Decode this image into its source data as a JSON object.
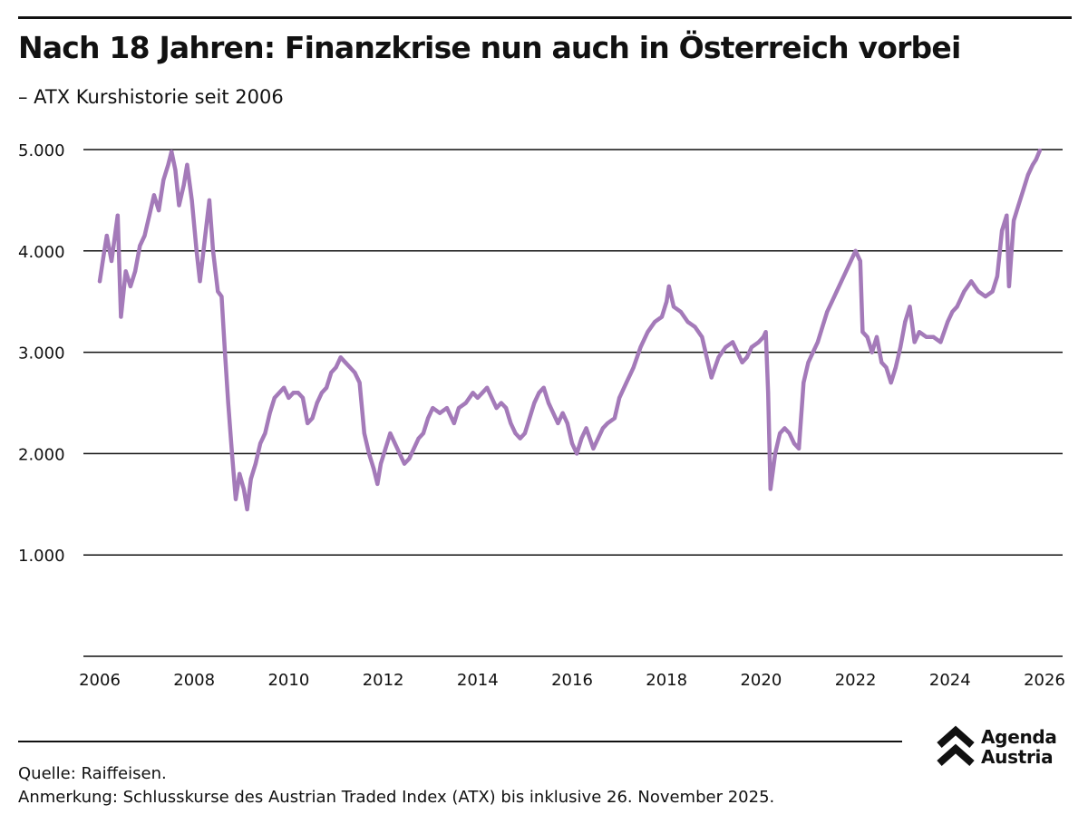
{
  "title": "Nach 18 Jahren: Finanzkrise nun auch in Österreich vorbei",
  "subtitle": "– ATX Kurshistorie seit 2006",
  "footer": {
    "source": "Quelle: Raiffeisen.",
    "note": "Anmerkung: Schlusskurse des Austrian Traded Index (ATX) bis inklusive 26. November 2025."
  },
  "logo": {
    "line1": "Agenda",
    "line2": "Austria",
    "icon": "double-chevron-up-icon"
  },
  "colors": {
    "series": "#a47ab9",
    "grid": "#111111",
    "text": "#111111",
    "background": "#ffffff"
  },
  "chart_data": {
    "type": "line",
    "title": "Nach 18 Jahren: Finanzkrise nun auch in Österreich vorbei",
    "subtitle": "– ATX Kurshistorie seit 2006",
    "xlabel": "",
    "ylabel": "",
    "xlim": [
      2006,
      2026
    ],
    "ylim": [
      0,
      5000
    ],
    "grid": true,
    "legend": "none",
    "x_ticks": [
      {
        "value": 2006,
        "label": "2006"
      },
      {
        "value": 2008,
        "label": "2008"
      },
      {
        "value": 2010,
        "label": "2010"
      },
      {
        "value": 2012,
        "label": "2012"
      },
      {
        "value": 2014,
        "label": "2014"
      },
      {
        "value": 2016,
        "label": "2016"
      },
      {
        "value": 2018,
        "label": "2018"
      },
      {
        "value": 2020,
        "label": "2020"
      },
      {
        "value": 2022,
        "label": "2022"
      },
      {
        "value": 2024,
        "label": "2024"
      },
      {
        "value": 2026,
        "label": "2026"
      }
    ],
    "y_ticks": [
      {
        "value": 1000,
        "label": "1.000"
      },
      {
        "value": 2000,
        "label": "2.000"
      },
      {
        "value": 3000,
        "label": "3.000"
      },
      {
        "value": 4000,
        "label": "4.000"
      },
      {
        "value": 5000,
        "label": "5.000"
      }
    ],
    "series": [
      {
        "name": "ATX",
        "color": "#a47ab9",
        "points": [
          [
            2006.0,
            3700
          ],
          [
            2006.08,
            3950
          ],
          [
            2006.15,
            4150
          ],
          [
            2006.25,
            3900
          ],
          [
            2006.38,
            4350
          ],
          [
            2006.45,
            3350
          ],
          [
            2006.55,
            3800
          ],
          [
            2006.65,
            3650
          ],
          [
            2006.75,
            3800
          ],
          [
            2006.85,
            4050
          ],
          [
            2006.95,
            4150
          ],
          [
            2007.05,
            4350
          ],
          [
            2007.15,
            4550
          ],
          [
            2007.25,
            4400
          ],
          [
            2007.35,
            4700
          ],
          [
            2007.45,
            4850
          ],
          [
            2007.52,
            4980
          ],
          [
            2007.6,
            4800
          ],
          [
            2007.68,
            4450
          ],
          [
            2007.78,
            4650
          ],
          [
            2007.85,
            4850
          ],
          [
            2007.95,
            4500
          ],
          [
            2008.05,
            4000
          ],
          [
            2008.12,
            3700
          ],
          [
            2008.22,
            4100
          ],
          [
            2008.32,
            4500
          ],
          [
            2008.4,
            4000
          ],
          [
            2008.5,
            3600
          ],
          [
            2008.58,
            3550
          ],
          [
            2008.65,
            3000
          ],
          [
            2008.72,
            2500
          ],
          [
            2008.8,
            2000
          ],
          [
            2008.88,
            1550
          ],
          [
            2008.96,
            1800
          ],
          [
            2009.05,
            1650
          ],
          [
            2009.12,
            1450
          ],
          [
            2009.2,
            1750
          ],
          [
            2009.3,
            1900
          ],
          [
            2009.4,
            2100
          ],
          [
            2009.5,
            2200
          ],
          [
            2009.6,
            2400
          ],
          [
            2009.7,
            2550
          ],
          [
            2009.8,
            2600
          ],
          [
            2009.9,
            2650
          ],
          [
            2010.0,
            2550
          ],
          [
            2010.1,
            2600
          ],
          [
            2010.2,
            2600
          ],
          [
            2010.3,
            2550
          ],
          [
            2010.4,
            2300
          ],
          [
            2010.5,
            2350
          ],
          [
            2010.6,
            2500
          ],
          [
            2010.7,
            2600
          ],
          [
            2010.8,
            2650
          ],
          [
            2010.9,
            2800
          ],
          [
            2011.0,
            2850
          ],
          [
            2011.1,
            2950
          ],
          [
            2011.2,
            2900
          ],
          [
            2011.3,
            2850
          ],
          [
            2011.4,
            2800
          ],
          [
            2011.5,
            2700
          ],
          [
            2011.6,
            2200
          ],
          [
            2011.7,
            2000
          ],
          [
            2011.8,
            1850
          ],
          [
            2011.88,
            1700
          ],
          [
            2011.95,
            1900
          ],
          [
            2012.05,
            2050
          ],
          [
            2012.15,
            2200
          ],
          [
            2012.25,
            2100
          ],
          [
            2012.35,
            2000
          ],
          [
            2012.45,
            1900
          ],
          [
            2012.55,
            1950
          ],
          [
            2012.65,
            2050
          ],
          [
            2012.75,
            2150
          ],
          [
            2012.85,
            2200
          ],
          [
            2012.95,
            2350
          ],
          [
            2013.05,
            2450
          ],
          [
            2013.2,
            2400
          ],
          [
            2013.35,
            2450
          ],
          [
            2013.5,
            2300
          ],
          [
            2013.6,
            2450
          ],
          [
            2013.75,
            2500
          ],
          [
            2013.9,
            2600
          ],
          [
            2014.0,
            2550
          ],
          [
            2014.1,
            2600
          ],
          [
            2014.2,
            2650
          ],
          [
            2014.3,
            2550
          ],
          [
            2014.4,
            2450
          ],
          [
            2014.5,
            2500
          ],
          [
            2014.6,
            2450
          ],
          [
            2014.7,
            2300
          ],
          [
            2014.8,
            2200
          ],
          [
            2014.9,
            2150
          ],
          [
            2015.0,
            2200
          ],
          [
            2015.1,
            2350
          ],
          [
            2015.2,
            2500
          ],
          [
            2015.3,
            2600
          ],
          [
            2015.4,
            2650
          ],
          [
            2015.5,
            2500
          ],
          [
            2015.6,
            2400
          ],
          [
            2015.7,
            2300
          ],
          [
            2015.8,
            2400
          ],
          [
            2015.9,
            2300
          ],
          [
            2016.0,
            2100
          ],
          [
            2016.1,
            2000
          ],
          [
            2016.2,
            2150
          ],
          [
            2016.3,
            2250
          ],
          [
            2016.45,
            2050
          ],
          [
            2016.55,
            2150
          ],
          [
            2016.65,
            2250
          ],
          [
            2016.75,
            2300
          ],
          [
            2016.9,
            2350
          ],
          [
            2017.0,
            2550
          ],
          [
            2017.15,
            2700
          ],
          [
            2017.3,
            2850
          ],
          [
            2017.45,
            3050
          ],
          [
            2017.6,
            3200
          ],
          [
            2017.75,
            3300
          ],
          [
            2017.9,
            3350
          ],
          [
            2018.0,
            3500
          ],
          [
            2018.05,
            3650
          ],
          [
            2018.15,
            3450
          ],
          [
            2018.3,
            3400
          ],
          [
            2018.45,
            3300
          ],
          [
            2018.6,
            3250
          ],
          [
            2018.75,
            3150
          ],
          [
            2018.85,
            2950
          ],
          [
            2018.95,
            2750
          ],
          [
            2019.1,
            2950
          ],
          [
            2019.25,
            3050
          ],
          [
            2019.4,
            3100
          ],
          [
            2019.5,
            3000
          ],
          [
            2019.6,
            2900
          ],
          [
            2019.7,
            2950
          ],
          [
            2019.8,
            3050
          ],
          [
            2019.95,
            3100
          ],
          [
            2020.05,
            3150
          ],
          [
            2020.1,
            3200
          ],
          [
            2020.15,
            2600
          ],
          [
            2020.2,
            1650
          ],
          [
            2020.3,
            2000
          ],
          [
            2020.4,
            2200
          ],
          [
            2020.5,
            2250
          ],
          [
            2020.6,
            2200
          ],
          [
            2020.7,
            2100
          ],
          [
            2020.8,
            2050
          ],
          [
            2020.9,
            2700
          ],
          [
            2021.0,
            2900
          ],
          [
            2021.1,
            3000
          ],
          [
            2021.2,
            3100
          ],
          [
            2021.3,
            3250
          ],
          [
            2021.4,
            3400
          ],
          [
            2021.5,
            3500
          ],
          [
            2021.6,
            3600
          ],
          [
            2021.7,
            3700
          ],
          [
            2021.8,
            3800
          ],
          [
            2021.9,
            3900
          ],
          [
            2022.0,
            4000
          ],
          [
            2022.1,
            3900
          ],
          [
            2022.15,
            3200
          ],
          [
            2022.25,
            3150
          ],
          [
            2022.35,
            3000
          ],
          [
            2022.45,
            3150
          ],
          [
            2022.55,
            2900
          ],
          [
            2022.65,
            2850
          ],
          [
            2022.75,
            2700
          ],
          [
            2022.85,
            2850
          ],
          [
            2022.95,
            3050
          ],
          [
            2023.05,
            3300
          ],
          [
            2023.15,
            3450
          ],
          [
            2023.25,
            3100
          ],
          [
            2023.35,
            3200
          ],
          [
            2023.5,
            3150
          ],
          [
            2023.65,
            3150
          ],
          [
            2023.8,
            3100
          ],
          [
            2023.95,
            3300
          ],
          [
            2024.05,
            3400
          ],
          [
            2024.15,
            3450
          ],
          [
            2024.3,
            3600
          ],
          [
            2024.45,
            3700
          ],
          [
            2024.6,
            3600
          ],
          [
            2024.75,
            3550
          ],
          [
            2024.9,
            3600
          ],
          [
            2025.0,
            3750
          ],
          [
            2025.1,
            4200
          ],
          [
            2025.2,
            4350
          ],
          [
            2025.25,
            3650
          ],
          [
            2025.35,
            4300
          ],
          [
            2025.45,
            4450
          ],
          [
            2025.55,
            4600
          ],
          [
            2025.65,
            4750
          ],
          [
            2025.75,
            4850
          ],
          [
            2025.82,
            4900
          ],
          [
            2025.9,
            4990
          ]
        ]
      }
    ]
  }
}
